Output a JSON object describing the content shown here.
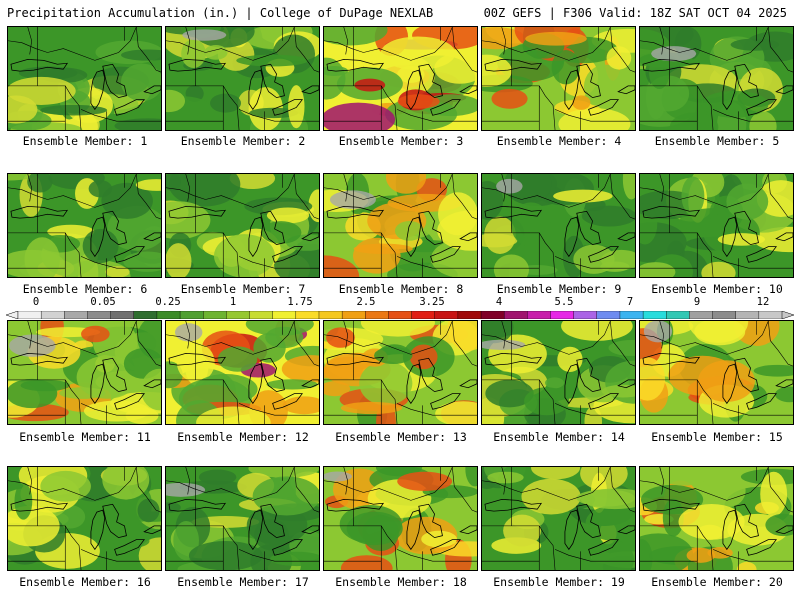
{
  "header": {
    "left": "Precipitation Accumulation (in.) | College of DuPage NEXLAB",
    "right": "00Z GEFS | F306 Valid: 18Z SAT OCT 04 2025"
  },
  "member_label_prefix": "Ensemble Member: ",
  "members": [
    {
      "id": "1",
      "dom": 0
    },
    {
      "id": "2",
      "dom": 0
    },
    {
      "id": "3",
      "dom": 2
    },
    {
      "id": "4",
      "dom": 1
    },
    {
      "id": "5",
      "dom": 0
    },
    {
      "id": "6",
      "dom": 0
    },
    {
      "id": "7",
      "dom": 0
    },
    {
      "id": "8",
      "dom": 1
    },
    {
      "id": "9",
      "dom": 0
    },
    {
      "id": "10",
      "dom": 0
    },
    {
      "id": "11",
      "dom": 1
    },
    {
      "id": "12",
      "dom": 2
    },
    {
      "id": "13",
      "dom": 1
    },
    {
      "id": "14",
      "dom": 0
    },
    {
      "id": "15",
      "dom": 1
    },
    {
      "id": "16",
      "dom": 0
    },
    {
      "id": "17",
      "dom": 0
    },
    {
      "id": "18",
      "dom": 1
    },
    {
      "id": "19",
      "dom": 0
    },
    {
      "id": "20",
      "dom": 1
    }
  ],
  "legend": {
    "tick_labels": [
      "0",
      "0.05",
      "0.25",
      "1",
      "1.75",
      "2.5",
      "3.25",
      "4",
      "5.5",
      "7",
      "9",
      "12"
    ],
    "colors": [
      "#f0f0f0",
      "#d2d2d2",
      "#a8a8a8",
      "#8c8c8c",
      "#707070",
      "#2f6e2f",
      "#3c8c28",
      "#50a032",
      "#6eb432",
      "#96c832",
      "#c8dc32",
      "#f0f032",
      "#fadc28",
      "#f5c81e",
      "#f0a014",
      "#eb7814",
      "#e65014",
      "#e11e14",
      "#c81414",
      "#a00a0a",
      "#800028",
      "#a0146e",
      "#c81eaa",
      "#e628e6",
      "#aa64e6",
      "#6e8cf0",
      "#3cb4f0",
      "#28dcdc",
      "#32c8b4",
      "#a0a0a0",
      "#8c8c8c",
      "#b4b4b4",
      "#c8c8c8"
    ]
  }
}
